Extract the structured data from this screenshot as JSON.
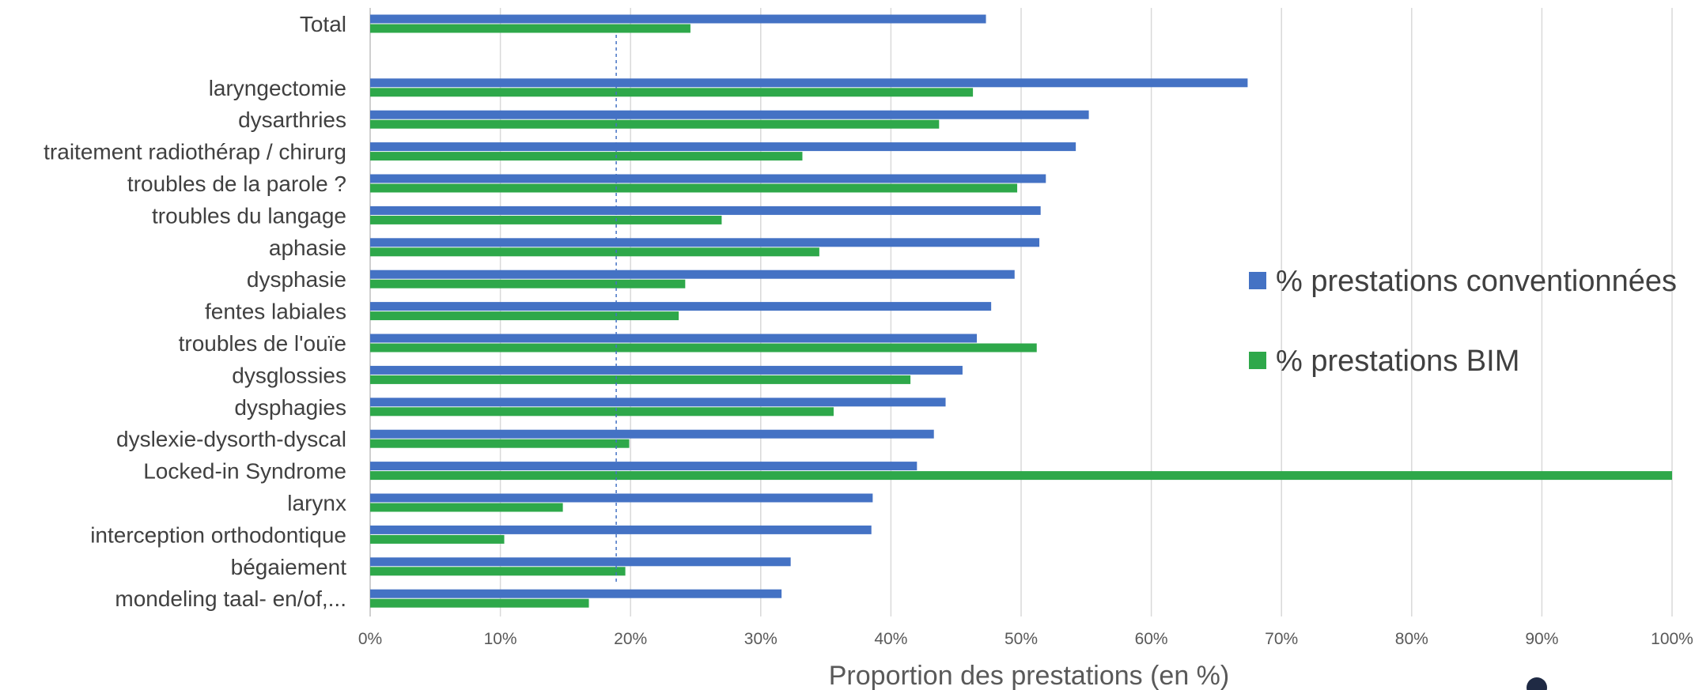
{
  "chart_data": {
    "type": "bar",
    "orientation": "horizontal",
    "categories": [
      "Total",
      "",
      "laryngectomie",
      "dysarthries",
      "traitement radiothérap / chirurg",
      "troubles de la parole ?",
      "troubles du langage",
      "aphasie",
      "dysphasie",
      "fentes labiales",
      "troubles de l'ouïe",
      "dysglossies",
      "dysphagies",
      "dyslexie-dysorth-dyscal",
      "Locked-in Syndrome",
      "larynx",
      "interception orthodontique",
      "bégaiement",
      "mondeling taal- en/of,..."
    ],
    "series": [
      {
        "name": "% prestations conventionnées",
        "color": "#4472C4",
        "values": [
          47.3,
          null,
          67.4,
          55.2,
          54.2,
          51.9,
          51.5,
          51.4,
          49.5,
          47.7,
          46.6,
          45.5,
          44.2,
          43.3,
          42.0,
          38.6,
          38.5,
          32.3,
          31.6
        ]
      },
      {
        "name": "% prestations BIM",
        "color": "#2EA84A",
        "values": [
          24.6,
          null,
          46.3,
          43.7,
          33.2,
          49.7,
          27.0,
          34.5,
          24.2,
          23.7,
          51.2,
          41.5,
          35.6,
          19.9,
          100.0,
          14.8,
          10.3,
          19.6,
          16.8
        ]
      }
    ],
    "reference_line": {
      "value": 18.9,
      "style": "dashed",
      "color": "#4472C4"
    },
    "xlabel": "Proportion des prestations (en %)",
    "ylabel": "",
    "xlim": [
      0,
      100
    ],
    "xticks": [
      "0%",
      "10%",
      "20%",
      "30%",
      "40%",
      "50%",
      "60%",
      "70%",
      "80%",
      "90%",
      "100%"
    ],
    "grid": true,
    "legend_position": "right"
  }
}
